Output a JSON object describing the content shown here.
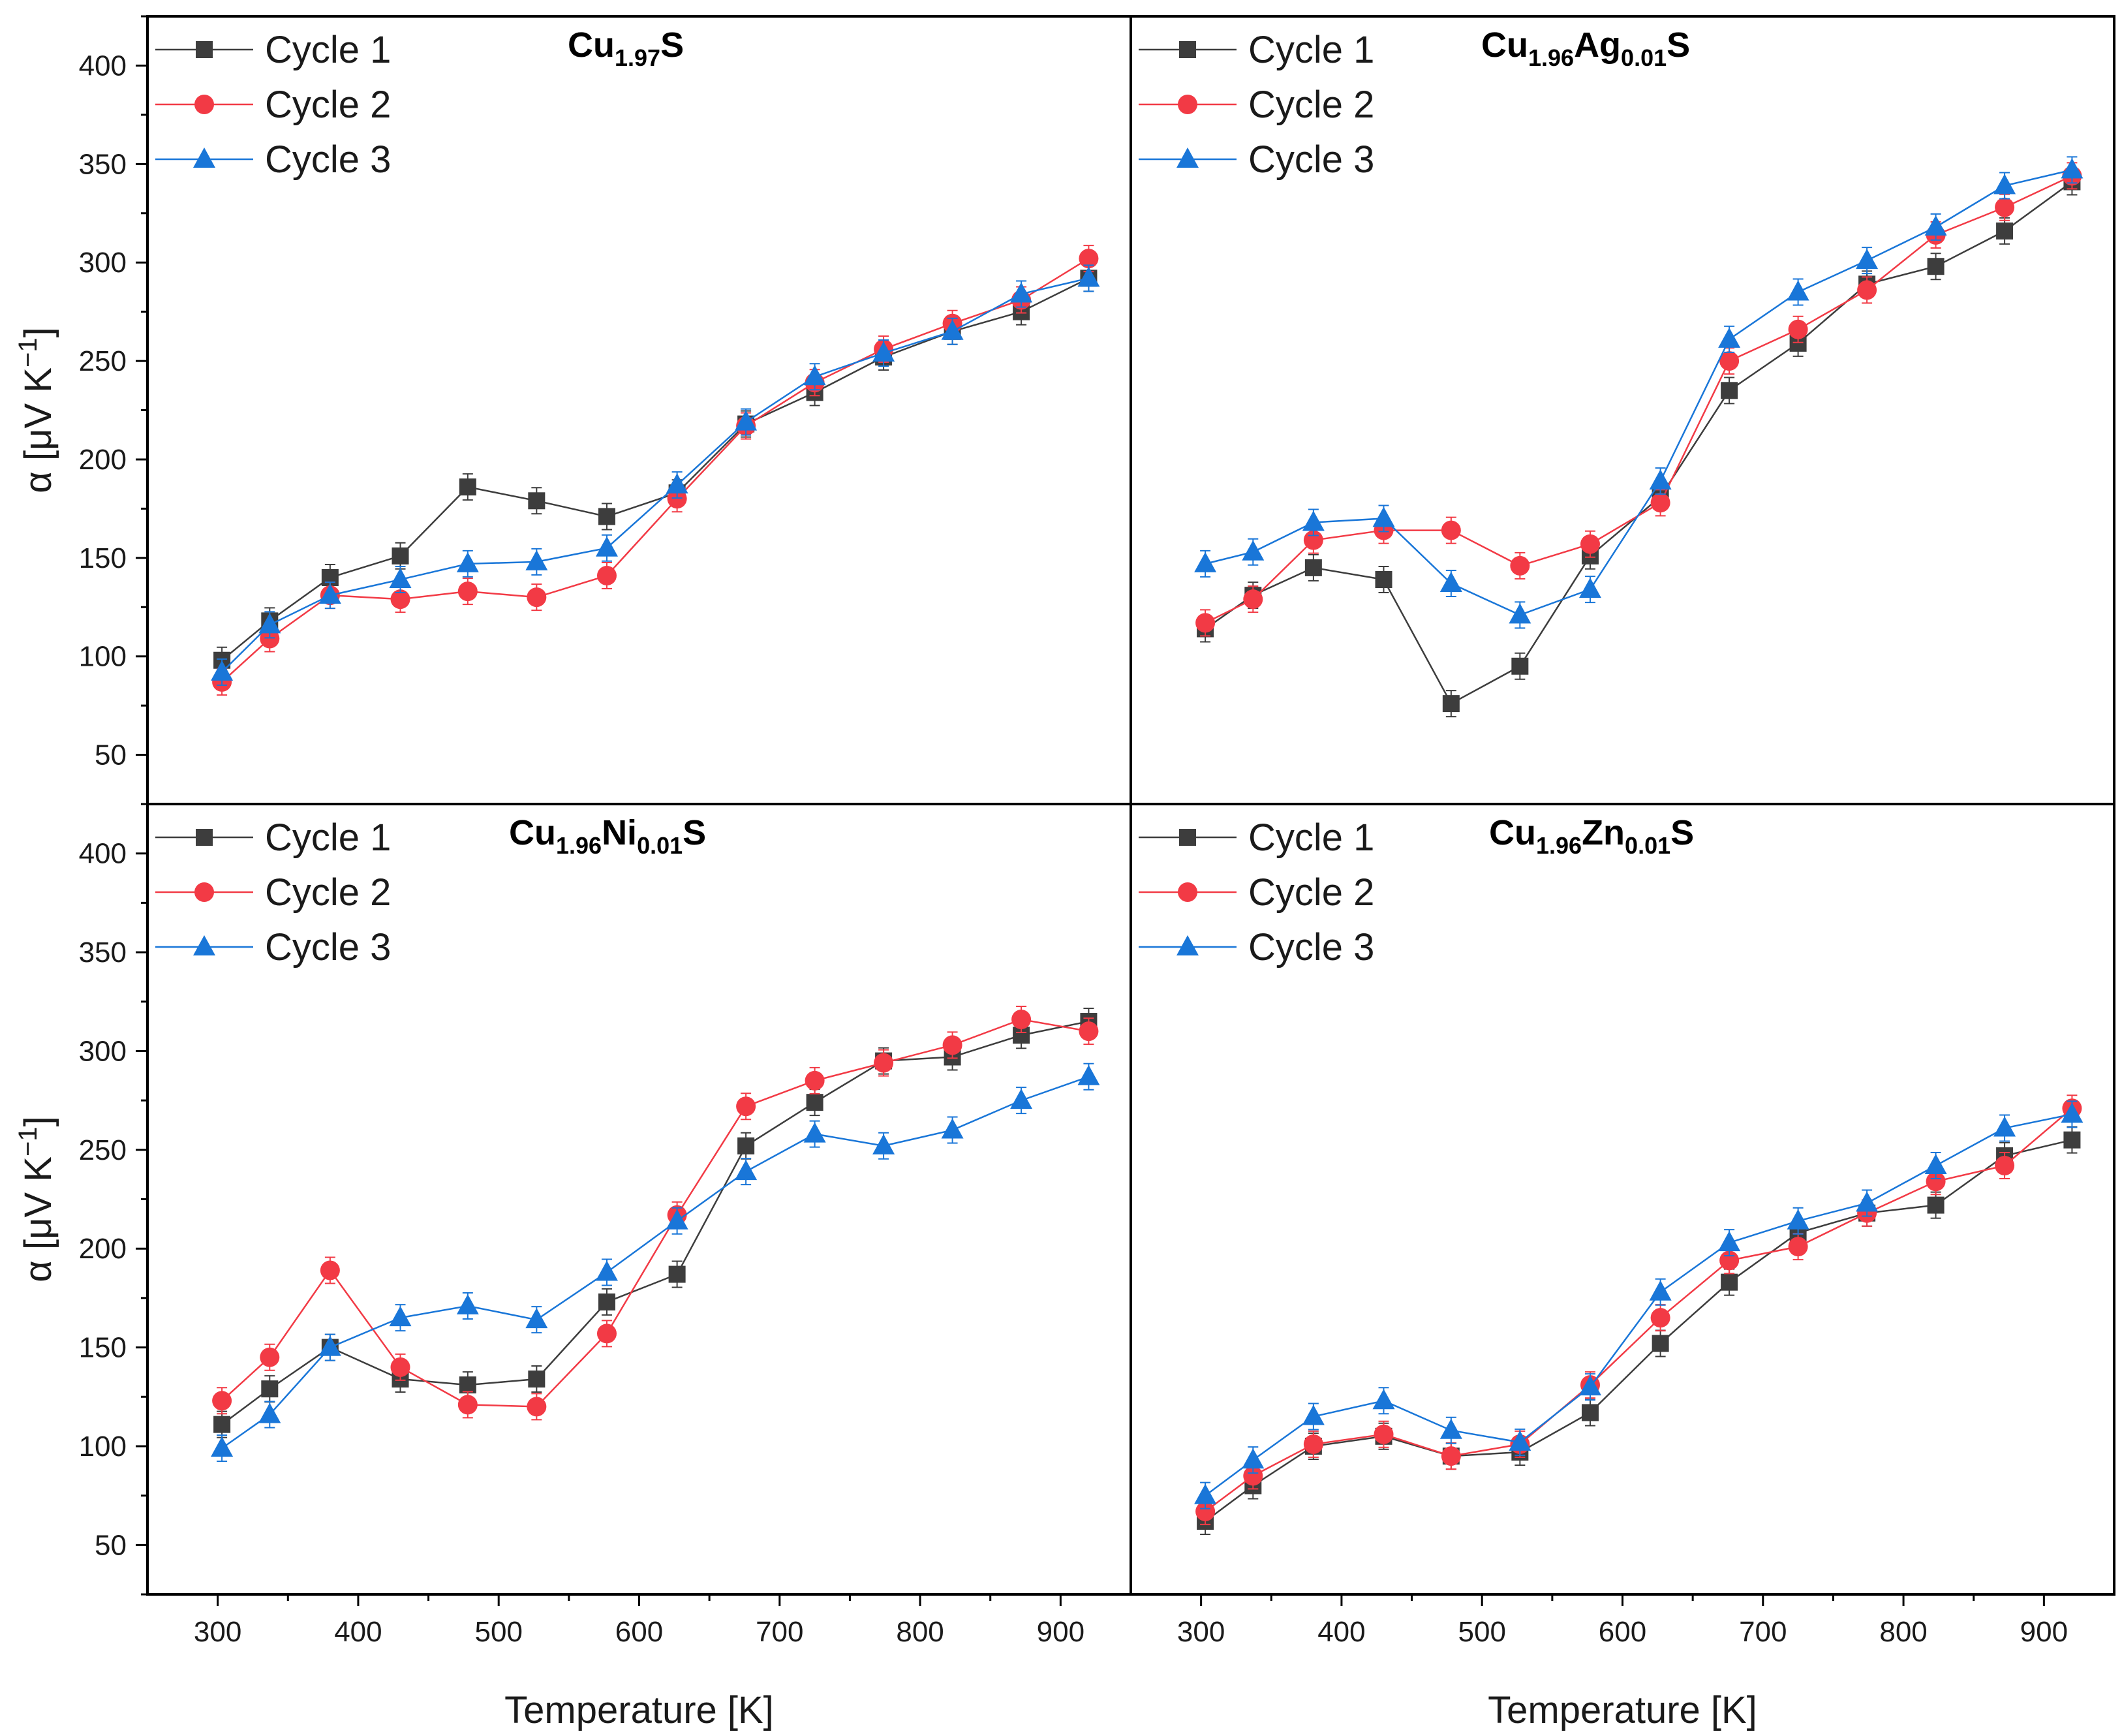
{
  "legend_labels": [
    "Cycle 1",
    "Cycle 2",
    "Cycle 3"
  ],
  "colors": {
    "cycle1": "#3d3d3d",
    "cycle2": "#f23a45",
    "cycle3": "#1976d8"
  },
  "chart_data": [
    {
      "type": "line",
      "title": "Cu1.97S",
      "title_parts": [
        {
          "t": "Cu",
          "sub": false
        },
        {
          "t": "1.97",
          "sub": true
        },
        {
          "t": "S",
          "sub": false
        }
      ],
      "xlabel": "Temperature [K]",
      "ylabel": "α [μV K−1]",
      "xlim": [
        250,
        950
      ],
      "ylim": [
        25,
        425
      ],
      "xticks": [
        300,
        400,
        500,
        600,
        700,
        800,
        900
      ],
      "yticks": [
        50,
        100,
        150,
        200,
        250,
        300,
        350,
        400
      ],
      "x": [
        303,
        337,
        380,
        430,
        478,
        527,
        577,
        627,
        676,
        725,
        774,
        823,
        872,
        920
      ],
      "series": [
        {
          "name": "Cycle 1",
          "marker": "square",
          "values": [
            98,
            118,
            140,
            151,
            186,
            179,
            171,
            183,
            218,
            234,
            252,
            265,
            275,
            292
          ]
        },
        {
          "name": "Cycle 2",
          "marker": "circle",
          "values": [
            87,
            109,
            131,
            129,
            133,
            130,
            141,
            180,
            217,
            239,
            256,
            269,
            281,
            302
          ]
        },
        {
          "name": "Cycle 3",
          "marker": "triangle",
          "values": [
            92,
            116,
            131,
            139,
            147,
            148,
            155,
            187,
            219,
            242,
            254,
            265,
            284,
            292
          ]
        }
      ]
    },
    {
      "type": "line",
      "title": "Cu1.96Ag0.01S",
      "title_parts": [
        {
          "t": "Cu",
          "sub": false
        },
        {
          "t": "1.96",
          "sub": true
        },
        {
          "t": "Ag",
          "sub": false
        },
        {
          "t": "0.01",
          "sub": true
        },
        {
          "t": "S",
          "sub": false
        }
      ],
      "xlabel": "Temperature [K]",
      "ylabel": "",
      "xlim": [
        250,
        950
      ],
      "ylim": [
        25,
        425
      ],
      "xticks": [
        300,
        400,
        500,
        600,
        700,
        800,
        900
      ],
      "yticks": [],
      "x": [
        303,
        337,
        380,
        430,
        478,
        527,
        577,
        627,
        676,
        725,
        774,
        823,
        872,
        920
      ],
      "series": [
        {
          "name": "Cycle 1",
          "marker": "square",
          "values": [
            114,
            131,
            145,
            139,
            76,
            95,
            151,
            181,
            235,
            259,
            289,
            298,
            316,
            341
          ]
        },
        {
          "name": "Cycle 2",
          "marker": "circle",
          "values": [
            117,
            129,
            159,
            164,
            164,
            146,
            157,
            178,
            250,
            266,
            286,
            314,
            328,
            344
          ]
        },
        {
          "name": "Cycle 3",
          "marker": "triangle",
          "values": [
            147,
            153,
            168,
            170,
            137,
            121,
            134,
            189,
            261,
            285,
            301,
            318,
            339,
            347
          ]
        }
      ]
    },
    {
      "type": "line",
      "title": "Cu1.96Ni0.01S",
      "title_parts": [
        {
          "t": "Cu",
          "sub": false
        },
        {
          "t": "1.96",
          "sub": true
        },
        {
          "t": "Ni",
          "sub": false
        },
        {
          "t": "0.01",
          "sub": true
        },
        {
          "t": "S",
          "sub": false
        }
      ],
      "xlabel": "Temperature [K]",
      "ylabel": "α [μV K−1]",
      "xlim": [
        250,
        950
      ],
      "ylim": [
        25,
        425
      ],
      "xticks": [
        300,
        400,
        500,
        600,
        700,
        800,
        900
      ],
      "yticks": [
        50,
        100,
        150,
        200,
        250,
        300,
        350,
        400
      ],
      "x": [
        303,
        337,
        380,
        430,
        478,
        527,
        577,
        627,
        676,
        725,
        774,
        823,
        872,
        920
      ],
      "series": [
        {
          "name": "Cycle 1",
          "marker": "square",
          "values": [
            111,
            129,
            150,
            134,
            131,
            134,
            173,
            187,
            252,
            274,
            295,
            297,
            308,
            315
          ]
        },
        {
          "name": "Cycle 2",
          "marker": "circle",
          "values": [
            123,
            145,
            189,
            140,
            121,
            120,
            157,
            217,
            272,
            285,
            294,
            303,
            316,
            310
          ]
        },
        {
          "name": "Cycle 3",
          "marker": "triangle",
          "values": [
            99,
            116,
            150,
            165,
            171,
            164,
            188,
            214,
            239,
            258,
            252,
            260,
            275,
            287
          ]
        }
      ]
    },
    {
      "type": "line",
      "title": "Cu1.96Zn0.01S",
      "title_parts": [
        {
          "t": "Cu",
          "sub": false
        },
        {
          "t": "1.96",
          "sub": true
        },
        {
          "t": "Zn",
          "sub": false
        },
        {
          "t": "0.01",
          "sub": true
        },
        {
          "t": "S",
          "sub": false
        }
      ],
      "xlabel": "Temperature [K]",
      "ylabel": "",
      "xlim": [
        250,
        950
      ],
      "ylim": [
        25,
        425
      ],
      "xticks": [
        300,
        400,
        500,
        600,
        700,
        800,
        900
      ],
      "yticks": [],
      "x": [
        303,
        337,
        380,
        430,
        478,
        527,
        577,
        627,
        676,
        725,
        774,
        823,
        872,
        920
      ],
      "series": [
        {
          "name": "Cycle 1",
          "marker": "square",
          "values": [
            62,
            80,
            100,
            105,
            95,
            97,
            117,
            152,
            183,
            208,
            218,
            222,
            247,
            255
          ]
        },
        {
          "name": "Cycle 2",
          "marker": "circle",
          "values": [
            67,
            85,
            101,
            106,
            95,
            101,
            131,
            165,
            194,
            201,
            218,
            234,
            242,
            271
          ]
        },
        {
          "name": "Cycle 3",
          "marker": "triangle",
          "values": [
            75,
            93,
            115,
            123,
            108,
            102,
            130,
            178,
            203,
            214,
            223,
            242,
            261,
            268
          ]
        }
      ]
    }
  ]
}
